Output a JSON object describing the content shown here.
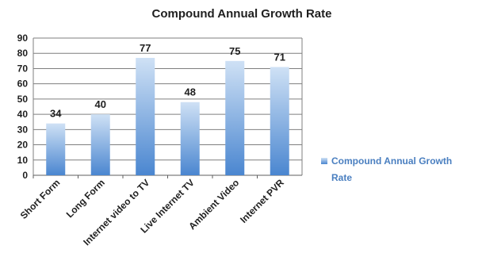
{
  "chart_data": {
    "type": "bar",
    "title": "Compound Annual Growth Rate",
    "categories": [
      "Short Form",
      "Long Form",
      "Internet video to TV",
      "Live Internet TV",
      "Ambient Video",
      "Internet PVR"
    ],
    "series": [
      {
        "name": "Compound Annual Growth Rate",
        "values": [
          34,
          40,
          77,
          48,
          75,
          71
        ]
      }
    ],
    "ylim": [
      0,
      90
    ],
    "yticks": [
      0,
      10,
      20,
      30,
      40,
      50,
      60,
      70,
      80,
      90
    ],
    "grid": true,
    "legend": "right",
    "legend_lines": [
      "Compound Annual Growth",
      "Rate"
    ],
    "bar_color": "#4a86d0",
    "bar_color_light": "#cfe1f5"
  }
}
